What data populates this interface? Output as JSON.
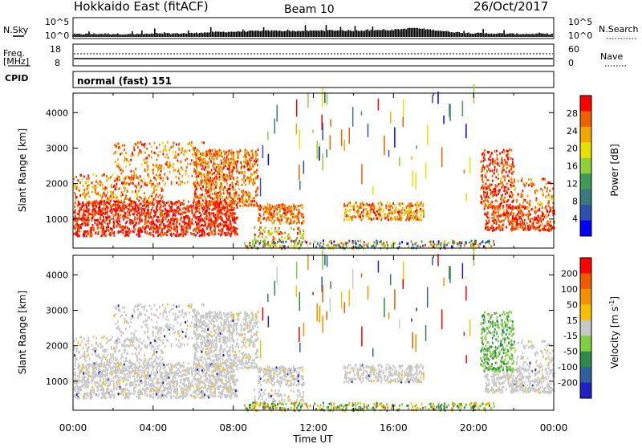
{
  "header": {
    "title": "Hokkaido East (fitACF)",
    "beam": "Beam 10",
    "date": "26/Oct/2017"
  },
  "strip_labels": {
    "nsky": "N.Sky",
    "nsky_ticks": [
      "10^5",
      "10^0"
    ],
    "nsearch": "N.Search",
    "nsearch_ticks": [
      "10^5",
      "10^0"
    ],
    "freq": "Freq.",
    "freq_unit": "[MHz]",
    "freq_ticks": [
      "18",
      "8"
    ],
    "nave": "Nave",
    "nave_ticks": [
      "60",
      "0"
    ],
    "cpid": "CPID",
    "cpid_value": "normal (fast) 151"
  },
  "chart_data": [
    {
      "type": "line",
      "name": "nsky-strip",
      "ylim": [
        0,
        5
      ],
      "x_hours": [
        0,
        1,
        2,
        3,
        4,
        5,
        6,
        7,
        8,
        9,
        10,
        11,
        12,
        13,
        14,
        15,
        16,
        17,
        18,
        19,
        20,
        21,
        22,
        23,
        24
      ],
      "y_log": [
        0.6,
        0.7,
        0.7,
        0.6,
        0.7,
        0.8,
        0.9,
        1.2,
        1.3,
        1.5,
        1.6,
        1.5,
        1.6,
        1.7,
        1.6,
        1.7,
        1.8,
        2.4,
        1.8,
        1.2,
        0.9,
        0.8,
        0.7,
        0.7,
        0.7
      ]
    },
    {
      "type": "heatmap",
      "name": "power-panel",
      "xlabel": "",
      "ylabel": "Slant Range [km]",
      "y_ticks": [
        "1000",
        "2000",
        "3000",
        "4000"
      ],
      "ylim": [
        180,
        4550
      ],
      "xlim_hours": [
        0,
        24
      ],
      "colorbar": {
        "label": "Power [dB]",
        "ticks": [
          "4",
          "8",
          "12",
          "16",
          "20",
          "24",
          "28"
        ],
        "range": [
          0,
          32
        ],
        "colors": [
          "#0000ff",
          "#2d4fb0",
          "#3a7a7a",
          "#3f9b55",
          "#8fcf3a",
          "#e8e000",
          "#f2a600",
          "#f06000",
          "#ff0000"
        ]
      }
    },
    {
      "type": "heatmap",
      "name": "velocity-panel",
      "xlabel": "Time UT",
      "ylabel": "Slant Range [km]",
      "y_ticks": [
        "1000",
        "2000",
        "3000",
        "4000"
      ],
      "ylim": [
        180,
        4550
      ],
      "x_ticks": [
        "00:00",
        "04:00",
        "08:00",
        "12:00",
        "16:00",
        "20:00",
        "00:00"
      ],
      "xlim_hours": [
        0,
        24
      ],
      "colorbar": {
        "label": "Velocity [m s",
        "label_exp": "-1",
        "label_end": "]",
        "ticks": [
          "200",
          "100",
          "50",
          "15",
          "-15",
          "-50",
          "-100",
          "-200"
        ],
        "colors": [
          "#2020c0",
          "#305fa0",
          "#2f8a4a",
          "#7fd040",
          "#c8c8c8",
          "#f7c000",
          "#f49000",
          "#f25a00",
          "#ff0000"
        ]
      }
    }
  ]
}
